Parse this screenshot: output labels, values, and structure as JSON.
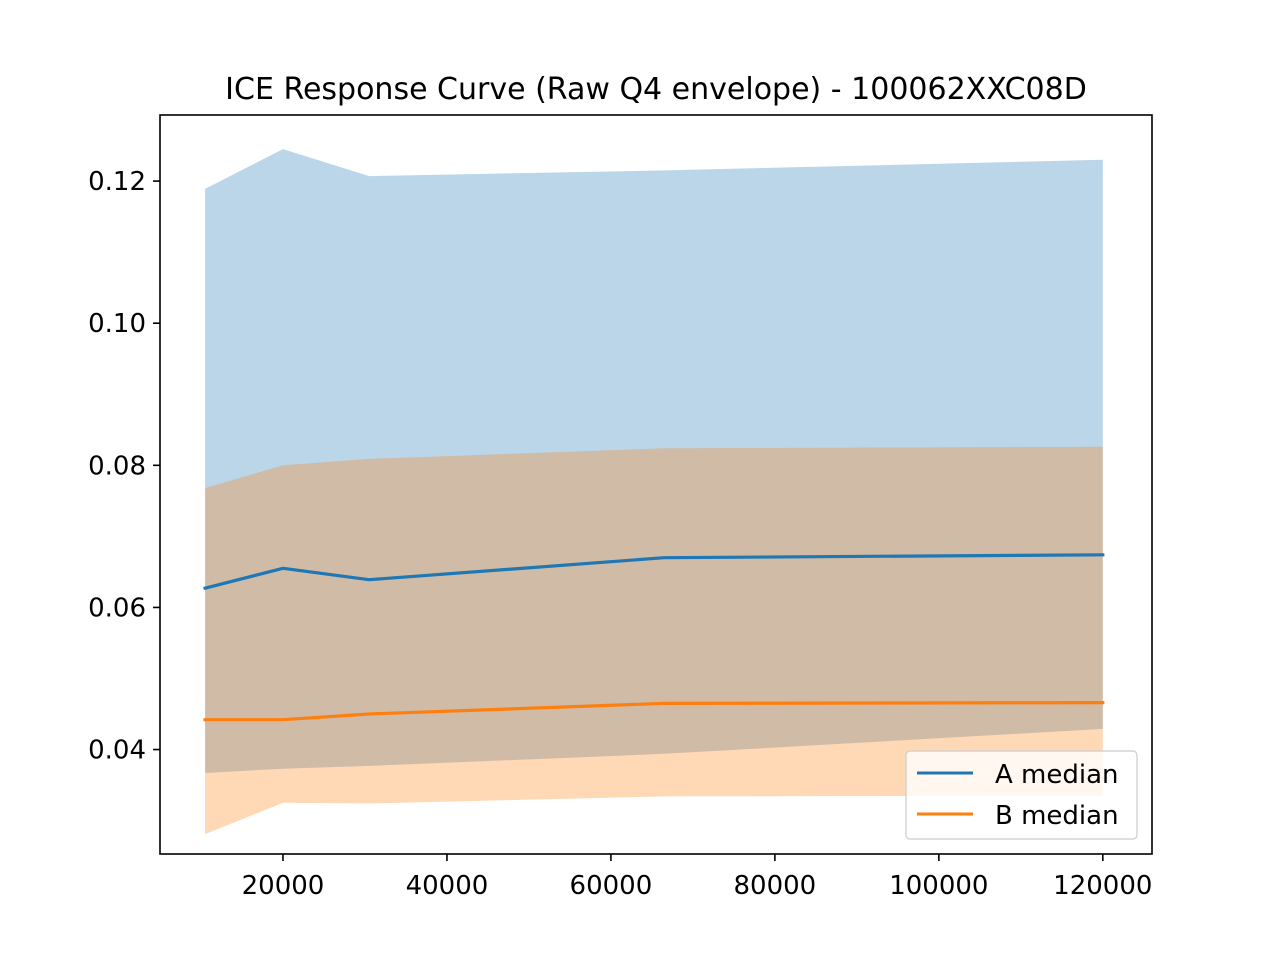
{
  "chart_data": {
    "type": "area",
    "title": "ICE Response Curve (Raw Q4 envelope) - 100062XXC08D",
    "xlabel": "",
    "ylabel": "",
    "xlim": [
      5000,
      126000
    ],
    "ylim": [
      0.0253,
      0.1293
    ],
    "x_ticks": [
      20000,
      40000,
      60000,
      80000,
      100000,
      120000
    ],
    "x_tick_labels": [
      "20000",
      "40000",
      "60000",
      "80000",
      "100000",
      "120000"
    ],
    "y_ticks": [
      0.04,
      0.06,
      0.08,
      0.1,
      0.12
    ],
    "y_tick_labels": [
      "0.04",
      "0.06",
      "0.08",
      "0.10",
      "0.12"
    ],
    "grid": false,
    "legend_position": "lower-right",
    "x": [
      10500,
      20000,
      30500,
      66500,
      120000
    ],
    "series": [
      {
        "name": "A median",
        "color": "#1f77b4",
        "values": [
          0.0627,
          0.0655,
          0.0639,
          0.067,
          0.0674
        ],
        "band_lower": [
          0.0367,
          0.0373,
          0.0377,
          0.0394,
          0.0429
        ],
        "band_upper": [
          0.1189,
          0.1245,
          0.1207,
          0.1215,
          0.123
        ]
      },
      {
        "name": "B median",
        "color": "#ff7f0e",
        "values": [
          0.0442,
          0.0442,
          0.045,
          0.0465,
          0.0466
        ],
        "band_lower": [
          0.0281,
          0.0325,
          0.0324,
          0.0334,
          0.0335
        ],
        "band_upper": [
          0.0768,
          0.08,
          0.0809,
          0.0824,
          0.0826
        ]
      }
    ]
  }
}
